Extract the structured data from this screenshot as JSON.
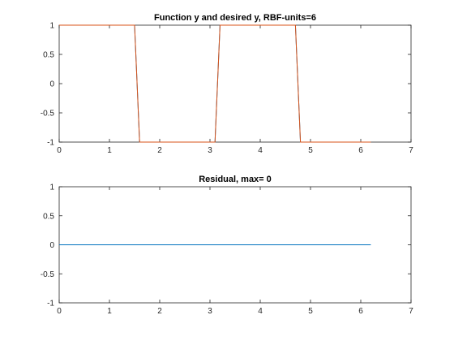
{
  "chart_data": [
    {
      "type": "line",
      "title": "Function y and desired y, RBF-units=6",
      "xlabel": "",
      "ylabel": "",
      "xlim": [
        0,
        7
      ],
      "ylim": [
        -1,
        1
      ],
      "xticks": [
        "0",
        "1",
        "2",
        "3",
        "4",
        "5",
        "6",
        "7"
      ],
      "yticks": [
        "1",
        "0.5",
        "0",
        "-0.5",
        "-1"
      ],
      "grid": false,
      "series": [
        {
          "color": "#0072BD",
          "x": [
            0,
            1.5,
            1.6,
            3.1,
            3.2,
            4.7,
            4.8,
            6.2
          ],
          "y": [
            1,
            1,
            -1,
            -1,
            1,
            1,
            -1,
            -1
          ]
        },
        {
          "color": "#D95319",
          "x": [
            0,
            1.5,
            1.6,
            3.1,
            3.2,
            4.7,
            4.8,
            6.2
          ],
          "y": [
            1,
            1,
            -1,
            -1,
            1,
            1,
            -1,
            -1
          ]
        }
      ]
    },
    {
      "type": "line",
      "title": "Residual, max= 0",
      "xlabel": "",
      "ylabel": "",
      "xlim": [
        0,
        7
      ],
      "ylim": [
        -1,
        1
      ],
      "xticks": [
        "0",
        "1",
        "2",
        "3",
        "4",
        "5",
        "6",
        "7"
      ],
      "yticks": [
        "1",
        "0.5",
        "0",
        "-0.5",
        "-1"
      ],
      "grid": false,
      "series": [
        {
          "color": "#0072BD",
          "x": [
            0,
            6.2
          ],
          "y": [
            0,
            0
          ]
        }
      ]
    }
  ]
}
